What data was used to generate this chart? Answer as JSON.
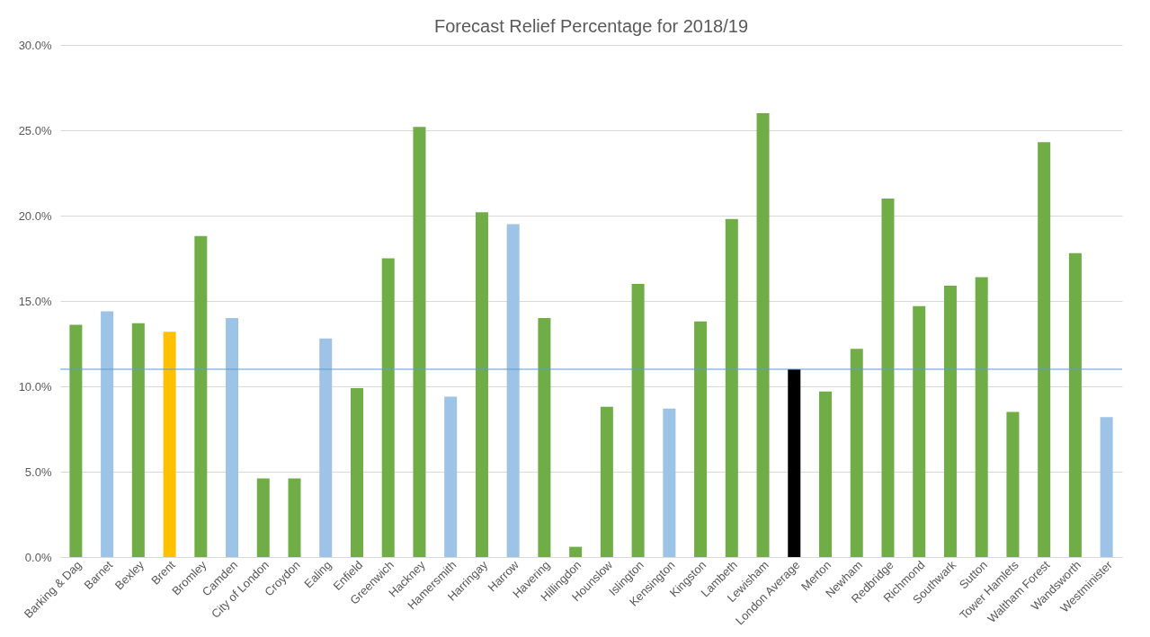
{
  "chart_data": {
    "type": "bar",
    "title": "Forecast Relief Percentage for 2018/19",
    "categories": [
      "Barking & Dag",
      "Barnet",
      "Bexley",
      "Brent",
      "Bromley",
      "Camden",
      "City of London",
      "Croydon",
      "Ealing",
      "Enfield",
      "Greenwich",
      "Hackney",
      "Hamersmith",
      "Harringay",
      "Harrow",
      "Havering",
      "Hillingdon",
      "Hounslow",
      "Islington",
      "Kensington",
      "Kingston",
      "Lambeth",
      "Lewisham",
      "London Average",
      "Merton",
      "Newham",
      "Redbridge",
      "Richmond",
      "Southwark",
      "Sutton",
      "Tower Hamlets",
      "Waltham Forest",
      "Wandsworth",
      "Westminister"
    ],
    "values": [
      13.6,
      14.4,
      13.7,
      13.2,
      18.8,
      14.0,
      4.6,
      4.6,
      12.8,
      9.9,
      17.5,
      25.2,
      9.4,
      20.2,
      19.5,
      14.0,
      0.6,
      8.8,
      16.0,
      8.7,
      13.8,
      19.8,
      26.0,
      11.0,
      9.7,
      12.2,
      21.0,
      14.7,
      15.9,
      16.4,
      8.5,
      24.3,
      17.8,
      8.2
    ],
    "colors": [
      "#70ad47",
      "#9dc3e6",
      "#70ad47",
      "#ffc000",
      "#70ad47",
      "#9dc3e6",
      "#70ad47",
      "#70ad47",
      "#9dc3e6",
      "#70ad47",
      "#70ad47",
      "#70ad47",
      "#9dc3e6",
      "#70ad47",
      "#9dc3e6",
      "#70ad47",
      "#70ad47",
      "#70ad47",
      "#70ad47",
      "#9dc3e6",
      "#70ad47",
      "#70ad47",
      "#70ad47",
      "#000000",
      "#70ad47",
      "#70ad47",
      "#70ad47",
      "#70ad47",
      "#70ad47",
      "#70ad47",
      "#70ad47",
      "#70ad47",
      "#70ad47",
      "#9dc3e6"
    ],
    "ylim": [
      0,
      30
    ],
    "yticks": [
      {
        "value": 0,
        "label": "0.0%"
      },
      {
        "value": 5,
        "label": "5.0%"
      },
      {
        "value": 10,
        "label": "10.0%"
      },
      {
        "value": 15,
        "label": "15.0%"
      },
      {
        "value": 20,
        "label": "20.0%"
      },
      {
        "value": 25,
        "label": "25.0%"
      },
      {
        "value": 30,
        "label": "30.0%"
      }
    ],
    "ref_lines": [
      {
        "axis": "y",
        "value": 11.0,
        "color": "#5b9bd5"
      }
    ],
    "grid": "y"
  }
}
